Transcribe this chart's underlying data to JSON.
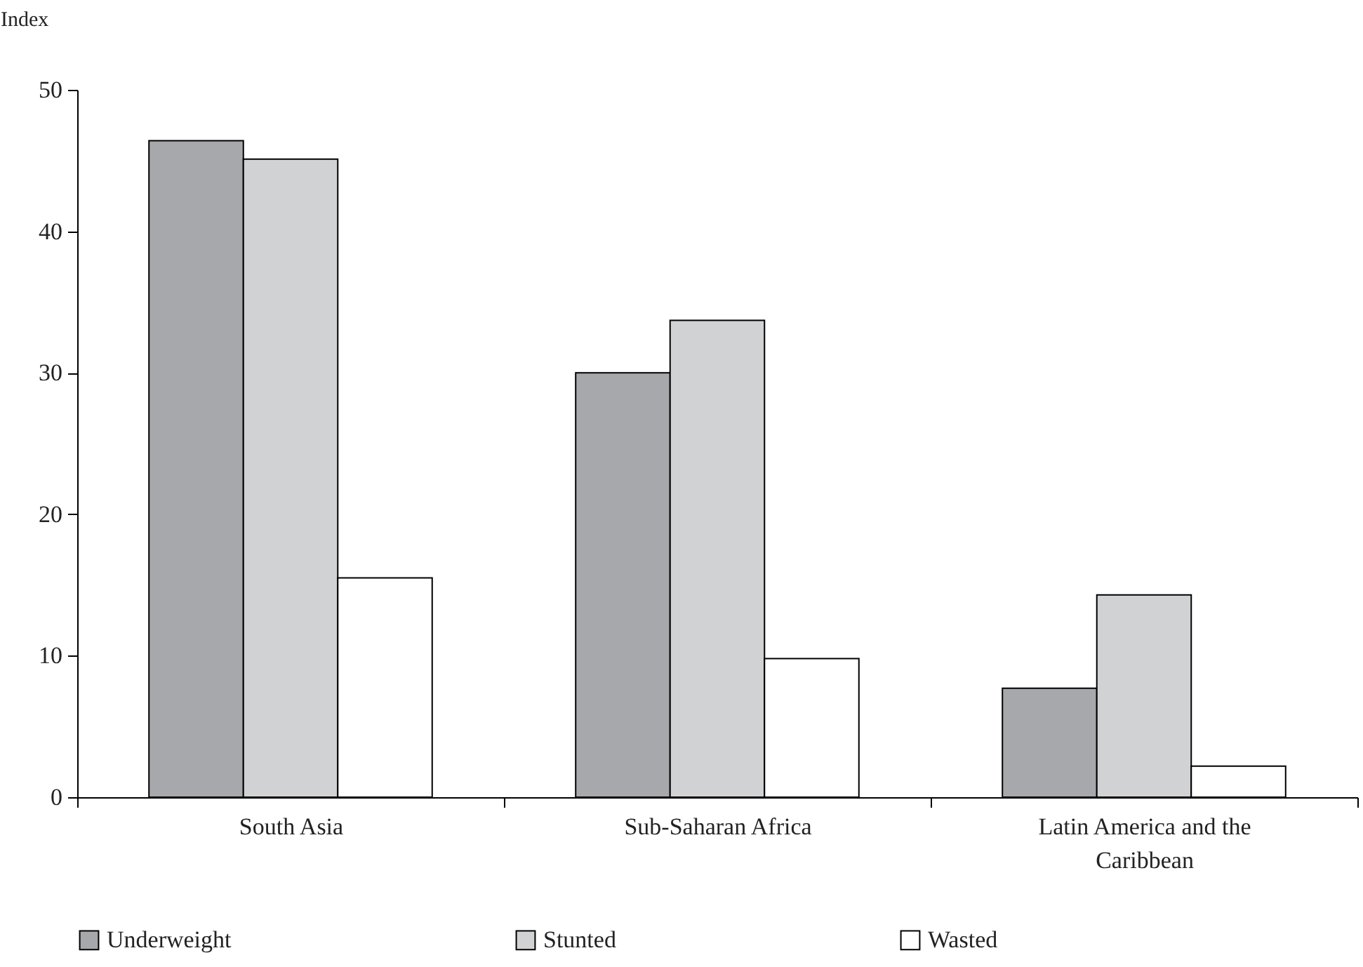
{
  "chart_data": {
    "type": "bar",
    "ylabel": "Index",
    "categories": [
      "South Asia",
      "Sub-Saharan Africa",
      "Latin America and the Caribbean"
    ],
    "series": [
      {
        "name": "Underweight",
        "color": "#a7a8ac",
        "values": [
          46.4,
          30.0,
          7.7
        ]
      },
      {
        "name": "Stunted",
        "color": "#d1d2d4",
        "values": [
          45.1,
          33.7,
          14.3
        ]
      },
      {
        "name": "Wasted",
        "color": "#ffffff",
        "values": [
          15.5,
          9.8,
          2.2
        ]
      }
    ],
    "ylim": [
      0,
      50
    ],
    "yticks": [
      0,
      10,
      20,
      30,
      40,
      50
    ],
    "grid": false,
    "legend": "bottom"
  }
}
